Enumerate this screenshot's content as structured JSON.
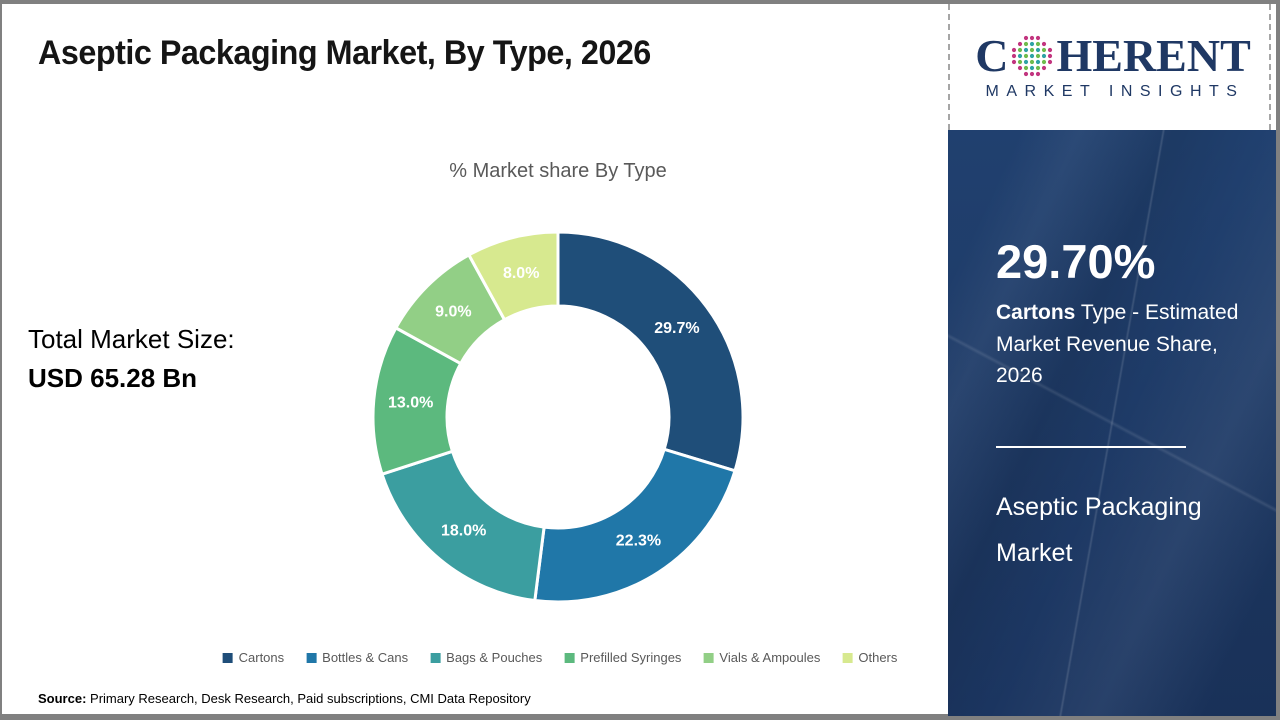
{
  "header": {
    "title": "Aseptic Packaging Market, By Type, 2026"
  },
  "logo": {
    "prefix": "C",
    "suffix": "HERENT",
    "subtitle": "MARKET INSIGHTS",
    "navy": "#1F3864",
    "globe_colors": {
      "edge": "#C2357F",
      "dot_a": "#2EA3A5",
      "dot_b": "#6FBC4C"
    }
  },
  "left": {
    "total_label": "Total Market Size:",
    "total_value": "USD 65.28 Bn"
  },
  "chart_data": {
    "type": "pie",
    "donut": true,
    "title": "% Market share By Type",
    "categories": [
      "Cartons",
      "Bottles & Cans",
      "Bags & Pouches",
      "Prefilled Syringes",
      "Vials & Ampoules",
      "Others"
    ],
    "values": [
      29.7,
      22.3,
      18.0,
      13.0,
      9.0,
      8.0
    ],
    "labels": [
      "29.7%",
      "22.3%",
      "18.0%",
      "13.0%",
      "9.0%",
      "8.0%"
    ],
    "colors": [
      "#1F4E79",
      "#2077A8",
      "#3B9EA0",
      "#5CB97E",
      "#92CF86",
      "#D7E98F"
    ],
    "start_angle": "12 o'clock, clockwise",
    "legend_position": "bottom",
    "label_color": "#FFFFFF"
  },
  "sidebar": {
    "stat_value": "29.70%",
    "stat_bold": "Cartons",
    "stat_rest": " Type - Estimated Market Revenue Share, 2026",
    "panel_title": "Aseptic Packaging Market",
    "background": "#1E3A66"
  },
  "source": {
    "label": "Source:",
    "text": " Primary Research, Desk Research, Paid subscriptions, CMI Data Repository"
  }
}
